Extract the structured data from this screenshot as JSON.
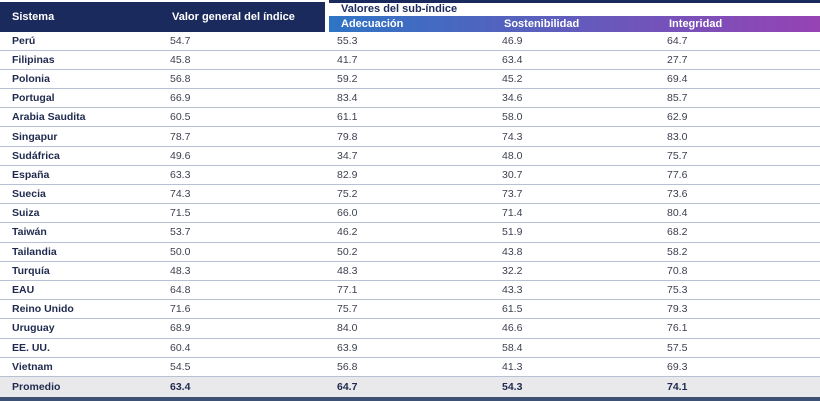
{
  "header": {
    "sistema": "Sistema",
    "valor_general": "Valor general del índice",
    "sub_group": "Valores del sub-índice",
    "adecuacion": "Adecuación",
    "sostenibilidad": "Sostenibilidad",
    "integridad": "Integridad"
  },
  "rows": [
    {
      "sistema": "Perú",
      "valor_general": "54.7",
      "adecuacion": "55.3",
      "sostenibilidad": "46.9",
      "integridad": "64.7"
    },
    {
      "sistema": "Filipinas",
      "valor_general": "45.8",
      "adecuacion": "41.7",
      "sostenibilidad": "63.4",
      "integridad": "27.7"
    },
    {
      "sistema": "Polonia",
      "valor_general": "56.8",
      "adecuacion": "59.2",
      "sostenibilidad": "45.2",
      "integridad": "69.4"
    },
    {
      "sistema": "Portugal",
      "valor_general": "66.9",
      "adecuacion": "83.4",
      "sostenibilidad": "34.6",
      "integridad": "85.7"
    },
    {
      "sistema": "Arabia Saudita",
      "valor_general": "60.5",
      "adecuacion": "61.1",
      "sostenibilidad": "58.0",
      "integridad": "62.9"
    },
    {
      "sistema": "Singapur",
      "valor_general": "78.7",
      "adecuacion": "79.8",
      "sostenibilidad": "74.3",
      "integridad": "83.0"
    },
    {
      "sistema": "Sudáfrica",
      "valor_general": "49.6",
      "adecuacion": "34.7",
      "sostenibilidad": "48.0",
      "integridad": "75.7"
    },
    {
      "sistema": "España",
      "valor_general": "63.3",
      "adecuacion": "82.9",
      "sostenibilidad": "30.7",
      "integridad": "77.6"
    },
    {
      "sistema": "Suecia",
      "valor_general": "74.3",
      "adecuacion": "75.2",
      "sostenibilidad": "73.7",
      "integridad": "73.6"
    },
    {
      "sistema": "Suiza",
      "valor_general": "71.5",
      "adecuacion": "66.0",
      "sostenibilidad": "71.4",
      "integridad": "80.4"
    },
    {
      "sistema": "Taiwán",
      "valor_general": "53.7",
      "adecuacion": "46.2",
      "sostenibilidad": "51.9",
      "integridad": "68.2"
    },
    {
      "sistema": "Tailandia",
      "valor_general": "50.0",
      "adecuacion": "50.2",
      "sostenibilidad": "43.8",
      "integridad": "58.2"
    },
    {
      "sistema": "Turquía",
      "valor_general": "48.3",
      "adecuacion": "48.3",
      "sostenibilidad": "32.2",
      "integridad": "70.8"
    },
    {
      "sistema": "EAU",
      "valor_general": "64.8",
      "adecuacion": "77.1",
      "sostenibilidad": "43.3",
      "integridad": "75.3"
    },
    {
      "sistema": "Reino Unido",
      "valor_general": "71.6",
      "adecuacion": "75.7",
      "sostenibilidad": "61.5",
      "integridad": "79.3"
    },
    {
      "sistema": "Uruguay",
      "valor_general": "68.9",
      "adecuacion": "84.0",
      "sostenibilidad": "46.6",
      "integridad": "76.1"
    },
    {
      "sistema": "EE. UU.",
      "valor_general": "60.4",
      "adecuacion": "63.9",
      "sostenibilidad": "58.4",
      "integridad": "57.5"
    },
    {
      "sistema": "Vietnam",
      "valor_general": "54.5",
      "adecuacion": "56.8",
      "sostenibilidad": "41.3",
      "integridad": "69.3"
    }
  ],
  "average_row": {
    "sistema": "Promedio",
    "valor_general": "63.4",
    "adecuacion": "64.7",
    "sostenibilidad": "54.3",
    "integridad": "74.1"
  },
  "colors": {
    "header_navy": "#1b2a5c",
    "gradient_start": "#2e74c5",
    "gradient_end": "#9643b4",
    "row_divider": "#b8c1d3",
    "average_row_bg": "#e9e9eb",
    "bottom_rule": "#3d5174"
  },
  "chart_data": {
    "type": "table",
    "columns": [
      "Sistema",
      "Valor general del índice",
      "Adecuación",
      "Sostenibilidad",
      "Integridad"
    ],
    "column_groups": [
      {
        "label": "Valores del sub-índice",
        "spans": [
          "Adecuación",
          "Sostenibilidad",
          "Integridad"
        ]
      }
    ],
    "rows": [
      [
        "Perú",
        54.7,
        55.3,
        46.9,
        64.7
      ],
      [
        "Filipinas",
        45.8,
        41.7,
        63.4,
        27.7
      ],
      [
        "Polonia",
        56.8,
        59.2,
        45.2,
        69.4
      ],
      [
        "Portugal",
        66.9,
        83.4,
        34.6,
        85.7
      ],
      [
        "Arabia Saudita",
        60.5,
        61.1,
        58.0,
        62.9
      ],
      [
        "Singapur",
        78.7,
        79.8,
        74.3,
        83.0
      ],
      [
        "Sudáfrica",
        49.6,
        34.7,
        48.0,
        75.7
      ],
      [
        "España",
        63.3,
        82.9,
        30.7,
        77.6
      ],
      [
        "Suecia",
        74.3,
        75.2,
        73.7,
        73.6
      ],
      [
        "Suiza",
        71.5,
        66.0,
        71.4,
        80.4
      ],
      [
        "Taiwán",
        53.7,
        46.2,
        51.9,
        68.2
      ],
      [
        "Tailandia",
        50.0,
        50.2,
        43.8,
        58.2
      ],
      [
        "Turquía",
        48.3,
        48.3,
        32.2,
        70.8
      ],
      [
        "EAU",
        64.8,
        77.1,
        43.3,
        75.3
      ],
      [
        "Reino Unido",
        71.6,
        75.7,
        61.5,
        79.3
      ],
      [
        "Uruguay",
        68.9,
        84.0,
        46.6,
        76.1
      ],
      [
        "EE. UU.",
        60.4,
        63.9,
        58.4,
        57.5
      ],
      [
        "Vietnam",
        54.5,
        56.8,
        41.3,
        69.3
      ]
    ],
    "footer_row": [
      "Promedio",
      63.4,
      64.7,
      54.3,
      74.1
    ]
  }
}
